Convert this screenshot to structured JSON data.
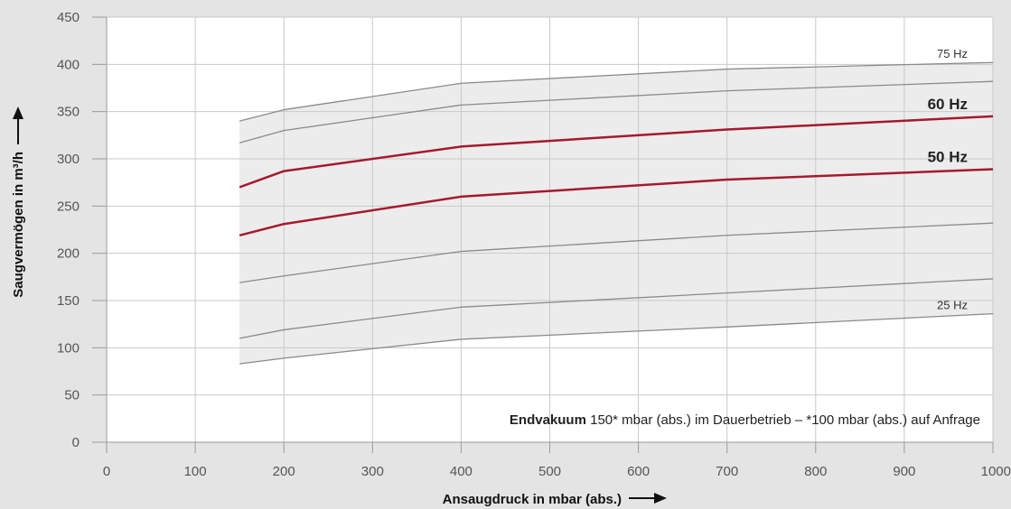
{
  "colors": {
    "background": "#e4e4e4",
    "plot_area": "#ffffff",
    "grid": "#c9c9c9",
    "band_fill": "#ececec",
    "thin_line": "#8a8a8a",
    "highlight_line": "#a6192e"
  },
  "chart_data": {
    "type": "line",
    "xlabel": "Ansaugdruck in mbar (abs.)",
    "ylabel": "Saugvermögen in m³/h",
    "xlim": [
      0,
      1000
    ],
    "ylim": [
      0,
      450
    ],
    "x_ticks": [
      0,
      100,
      200,
      300,
      400,
      500,
      600,
      700,
      800,
      900,
      1000
    ],
    "y_ticks": [
      0,
      50,
      100,
      150,
      200,
      250,
      300,
      350,
      400,
      450
    ],
    "grid": true,
    "x": [
      150,
      200,
      400,
      700,
      1000
    ],
    "series": [
      {
        "name": "75 Hz",
        "values": [
          340,
          352,
          380,
          395,
          402
        ],
        "style": "thin"
      },
      {
        "name": "",
        "values": [
          317,
          330,
          357,
          372,
          382
        ],
        "style": "thin"
      },
      {
        "name": "60 Hz",
        "values": [
          270,
          287,
          313,
          331,
          345
        ],
        "style": "highlight"
      },
      {
        "name": "50 Hz",
        "values": [
          219,
          231,
          260,
          278,
          289
        ],
        "style": "highlight"
      },
      {
        "name": "",
        "values": [
          169,
          176,
          202,
          219,
          232
        ],
        "style": "thin"
      },
      {
        "name": "",
        "values": [
          110,
          119,
          143,
          158,
          173
        ],
        "style": "thin"
      },
      {
        "name": "25 Hz",
        "values": [
          83,
          89,
          109,
          122,
          136
        ],
        "style": "thin"
      }
    ],
    "annotation": {
      "bold": "Endvakuum",
      "text": " 150* mbar (abs.) im Dauerbetrieb – *100 mbar (abs.) auf Anfrage"
    }
  }
}
